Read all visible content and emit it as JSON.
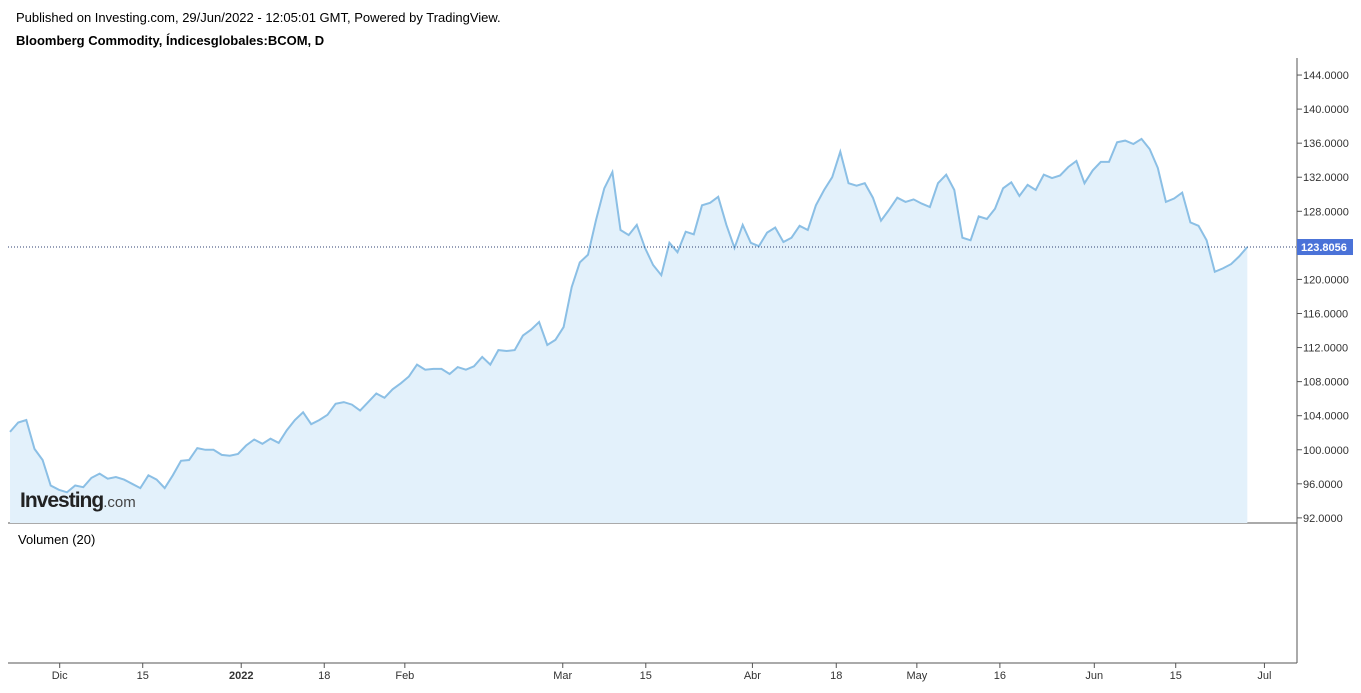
{
  "header": {
    "published": "Published on Investing.com, 29/Jun/2022 - 12:05:01 GMT, Powered by TradingView.",
    "symbol": "Bloomberg Commodity, Índicesglobales:BCOM, D"
  },
  "chart_data": {
    "type": "area",
    "color": "#8bbfe5",
    "fill": "#e3f1fb",
    "values": [
      102.1,
      103.2,
      103.5,
      100.1,
      98.8,
      95.8,
      95.3,
      95.0,
      95.8,
      95.6,
      96.7,
      97.2,
      96.6,
      96.8,
      96.5,
      96.0,
      95.5,
      97.0,
      96.5,
      95.5,
      97.0,
      98.7,
      98.8,
      100.2,
      100.0,
      100.0,
      99.4,
      99.3,
      99.5,
      100.5,
      101.2,
      100.7,
      101.3,
      100.8,
      102.3,
      103.5,
      104.4,
      103.0,
      103.5,
      104.1,
      105.4,
      105.6,
      105.3,
      104.6,
      105.6,
      106.6,
      106.1,
      107.1,
      107.8,
      108.6,
      110.0,
      109.4,
      109.5,
      109.5,
      108.9,
      109.7,
      109.4,
      109.8,
      110.9,
      110.0,
      111.7,
      111.6,
      111.7,
      113.4,
      114.1,
      115.0,
      112.3,
      112.9,
      114.4,
      119.1,
      122.0,
      122.9,
      127.0,
      130.7,
      132.6,
      125.8,
      125.2,
      126.4,
      123.7,
      121.7,
      120.5,
      124.3,
      123.2,
      125.6,
      125.3,
      128.7,
      129.0,
      129.7,
      126.4,
      123.7,
      126.4,
      124.3,
      123.9,
      125.5,
      126.1,
      124.4,
      124.9,
      126.3,
      125.8,
      128.7,
      130.5,
      132.0,
      135.0,
      131.3,
      131.0,
      131.3,
      129.6,
      126.9,
      128.2,
      129.6,
      129.1,
      129.4,
      128.9,
      128.5,
      131.3,
      132.3,
      130.5,
      124.9,
      124.6,
      127.4,
      127.1,
      128.3,
      130.7,
      131.4,
      129.8,
      131.1,
      130.5,
      132.3,
      131.9,
      132.2,
      133.2,
      133.9,
      131.3,
      132.8,
      133.8,
      133.8,
      136.1,
      136.3,
      135.9,
      136.5,
      135.3,
      133.1,
      129.1,
      129.5,
      130.2,
      126.7,
      126.3,
      124.6,
      120.9,
      121.3,
      121.8,
      122.7,
      123.8056
    ],
    "xlim": [
      -0.25,
      158.1
    ],
    "ylim": [
      91.4,
      146
    ],
    "xticks": [
      {
        "value": 6.1,
        "label": "Dic"
      },
      {
        "value": 16.3,
        "label": "15"
      },
      {
        "value": 28.4,
        "label": "2022"
      },
      {
        "value": 38.6,
        "label": "18"
      },
      {
        "value": 48.5,
        "label": "Feb"
      },
      {
        "value": 67.9,
        "label": "Mar"
      },
      {
        "value": 78.1,
        "label": "15"
      },
      {
        "value": 91.2,
        "label": "Abr"
      },
      {
        "value": 101.5,
        "label": "18"
      },
      {
        "value": 111.4,
        "label": "May"
      },
      {
        "value": 121.6,
        "label": "16"
      },
      {
        "value": 133.2,
        "label": "Jun"
      },
      {
        "value": 143.2,
        "label": "15"
      },
      {
        "value": 154.1,
        "label": "Jul"
      }
    ],
    "yticks": [
      {
        "value": 92,
        "label": "92.0000"
      },
      {
        "value": 96,
        "label": "96.0000"
      },
      {
        "value": 100,
        "label": "100.0000"
      },
      {
        "value": 104,
        "label": "104.0000"
      },
      {
        "value": 108,
        "label": "108.0000"
      },
      {
        "value": 112,
        "label": "112.0000"
      },
      {
        "value": 116,
        "label": "116.0000"
      },
      {
        "value": 120,
        "label": "120.0000"
      },
      {
        "value": 124,
        "label": "124.0000"
      },
      {
        "value": 128,
        "label": "128.0000"
      },
      {
        "value": 132,
        "label": "132.0000"
      },
      {
        "value": 136,
        "label": "136.0000"
      },
      {
        "value": 140,
        "label": "140.0000"
      },
      {
        "value": 144,
        "label": "144.0000"
      }
    ],
    "volume_label": "Volumen (20)",
    "logo": {
      "main": "Investing",
      "suffix": ".com"
    }
  }
}
